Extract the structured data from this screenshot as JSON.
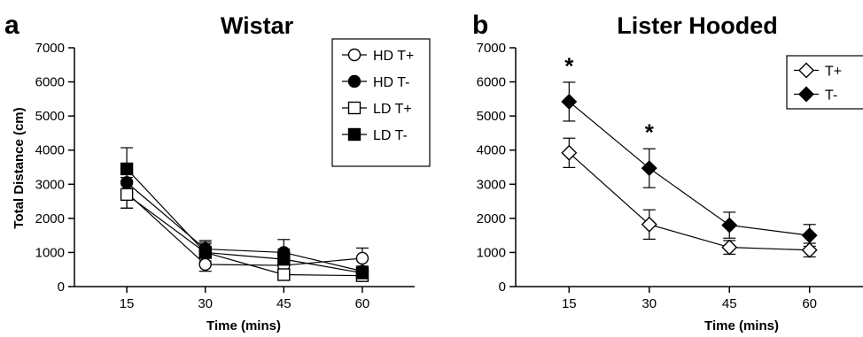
{
  "chart_data": [
    {
      "type": "line",
      "panel_label": "a",
      "title": "Wistar",
      "xlabel": "Time (mins)",
      "ylabel": "Total Distance (cm)",
      "x": [
        15,
        30,
        45,
        60
      ],
      "xlim": [
        5,
        70
      ],
      "ylim": [
        0,
        7000
      ],
      "yticks": [
        0,
        1000,
        2000,
        3000,
        4000,
        5000,
        6000,
        7000
      ],
      "grid": false,
      "legend_position": "top-right",
      "series": [
        {
          "name": "HD T+",
          "marker": "circle-open",
          "values": [
            2750,
            650,
            620,
            830
          ],
          "errors": [
            450,
            200,
            300,
            300
          ]
        },
        {
          "name": "HD T-",
          "marker": "circle-filled",
          "values": [
            3050,
            1100,
            1000,
            450
          ],
          "errors": [
            400,
            250,
            380,
            150
          ]
        },
        {
          "name": "LD T+",
          "marker": "square-open",
          "values": [
            2700,
            1000,
            350,
            320
          ],
          "errors": [
            400,
            250,
            100,
            100
          ]
        },
        {
          "name": "LD T-",
          "marker": "square-filled",
          "values": [
            3450,
            1000,
            800,
            400
          ],
          "errors": [
            620,
            300,
            300,
            150
          ]
        }
      ]
    },
    {
      "type": "line",
      "panel_label": "b",
      "title": "Lister Hooded",
      "xlabel": "Time (mins)",
      "ylabel": "",
      "x": [
        15,
        30,
        45,
        60
      ],
      "xlim": [
        5,
        70
      ],
      "ylim": [
        0,
        7000
      ],
      "yticks": [
        0,
        1000,
        2000,
        3000,
        4000,
        5000,
        6000,
        7000
      ],
      "grid": false,
      "legend_position": "top-right",
      "annotations": [
        {
          "text": "*",
          "x": 15,
          "y": 6500
        },
        {
          "text": "*",
          "x": 30,
          "y": 4550
        }
      ],
      "series": [
        {
          "name": "T+",
          "marker": "diamond-open",
          "values": [
            3920,
            1820,
            1150,
            1070
          ],
          "errors": [
            430,
            430,
            200,
            200
          ]
        },
        {
          "name": "T-",
          "marker": "diamond-filled",
          "values": [
            5420,
            3470,
            1800,
            1500
          ],
          "errors": [
            570,
            570,
            380,
            320
          ]
        }
      ]
    }
  ]
}
